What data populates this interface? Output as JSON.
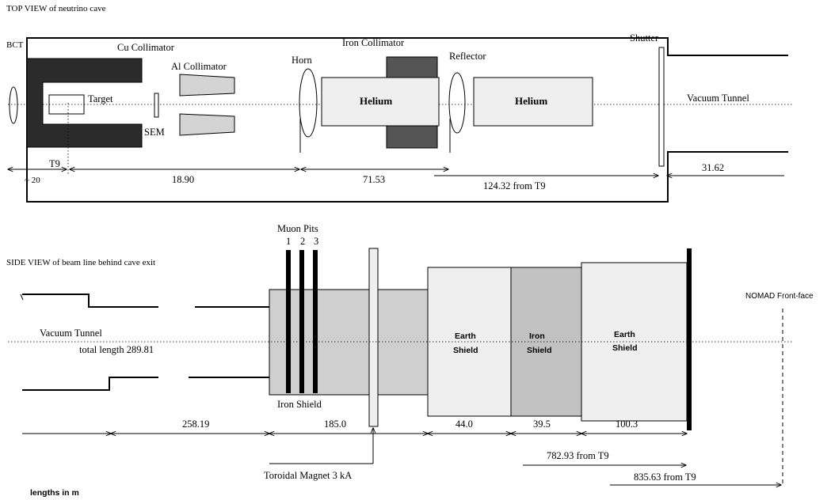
{
  "top_view": {
    "title": "TOP VIEW of neutrino cave",
    "bct": "BCT",
    "cu_collimator": "Cu Collimator",
    "al_collimator": "Al Collimator",
    "target": "Target",
    "sem": "SEM",
    "horn": "Horn",
    "iron_collimator": "Iron Collimator",
    "reflector": "Reflector",
    "shutter": "Shutter",
    "helium_1": "Helium",
    "helium_2": "Helium",
    "vacuum_tunnel": "Vacuum Tunnel",
    "t9": "T9",
    "dim_approx_20": "~ 20",
    "dim_18_90": "18.90",
    "dim_71_53": "71.53",
    "dim_124_32": "124.32 from T9",
    "dim_31_62": "31.62"
  },
  "side_view": {
    "title": "SIDE VIEW of beam line behind cave exit",
    "muon_pits": "Muon Pits",
    "pit_1": "1",
    "pit_2": "2",
    "pit_3": "3",
    "vacuum_tunnel": "Vacuum Tunnel",
    "total_length": "total length 289.81",
    "iron_shield_label": "Iron Shield",
    "earth_shield_1_line1": "Earth",
    "earth_shield_1_line2": "Shield",
    "iron_shield_line1": "Iron",
    "iron_shield_line2": "Shield",
    "earth_shield_2_line1": "Earth",
    "earth_shield_2_line2": "Shield",
    "nomad": "NOMAD Front-face",
    "dim_258_19": "258.19",
    "dim_185_0": "185.0",
    "dim_44_0": "44.0",
    "dim_39_5": "39.5",
    "dim_100_3": "100.3",
    "dim_782_93": "782.93 from T9",
    "dim_835_63": "835.63 from T9",
    "toroidal_magnet": "Toroidal Magnet 3 kA"
  },
  "footer": {
    "units_note": "lengths in m"
  },
  "colors": {
    "dark": "#2b2b2b",
    "mid_dark": "#555555",
    "light_fill": "#efefef",
    "grey_fill": "#d4d4d4",
    "mid_fill": "#c2c2c2"
  }
}
